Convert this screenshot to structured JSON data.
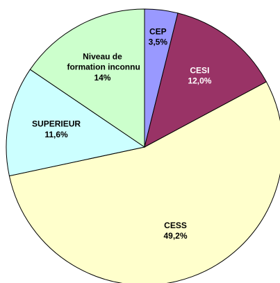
{
  "chart_data": {
    "type": "pie",
    "categories": [
      "CEP",
      "CESI",
      "CESS",
      "SUPERIEUR",
      "Niveau de formation inconnu"
    ],
    "values": [
      3.5,
      12.0,
      49.2,
      11.6,
      14
    ],
    "value_labels": [
      "3,5%",
      "12,0%",
      "49,2%",
      "11,6%",
      "14%"
    ],
    "colors": [
      "#9999ff",
      "#993366",
      "#ffffcc",
      "#ccffff",
      "#ccffcc"
    ]
  }
}
